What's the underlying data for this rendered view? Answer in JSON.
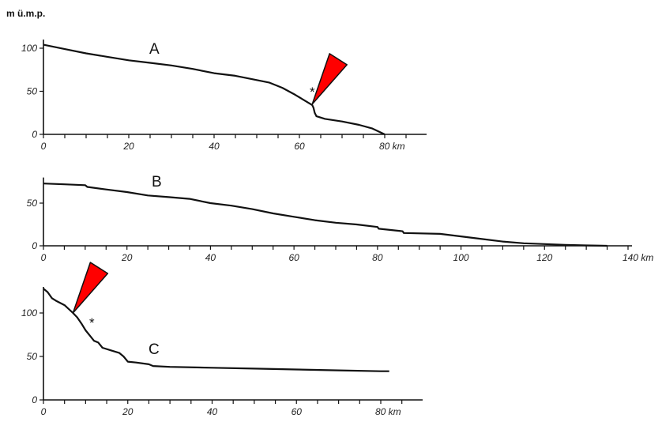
{
  "unit_label": "m ü.m.p.",
  "chart_data": [
    {
      "type": "line",
      "label": "A",
      "x_tick_labels": [
        "0",
        "20",
        "40",
        "60",
        "80 km"
      ],
      "y_tick_labels": [
        "0",
        "50",
        "100"
      ],
      "x_ticks": [
        0,
        20,
        40,
        60,
        80
      ],
      "y_ticks": [
        0,
        50,
        100
      ],
      "xlim": [
        0,
        90
      ],
      "ylim": [
        0,
        110
      ],
      "annotation": "*",
      "marker": {
        "x": 63,
        "y": 35,
        "color": "#ff0000"
      },
      "points": [
        [
          0,
          104
        ],
        [
          5,
          99
        ],
        [
          10,
          94
        ],
        [
          15,
          90
        ],
        [
          20,
          86
        ],
        [
          25,
          83
        ],
        [
          30,
          80
        ],
        [
          35,
          76
        ],
        [
          40,
          71
        ],
        [
          45,
          68
        ],
        [
          50,
          63
        ],
        [
          53,
          60
        ],
        [
          56,
          54
        ],
        [
          59,
          46
        ],
        [
          61,
          40
        ],
        [
          62,
          37
        ],
        [
          63,
          34
        ],
        [
          63.3,
          31
        ],
        [
          63.6,
          25
        ],
        [
          64,
          21
        ],
        [
          66,
          18
        ],
        [
          70,
          15
        ],
        [
          74,
          11
        ],
        [
          77,
          7
        ],
        [
          80,
          0
        ]
      ]
    },
    {
      "type": "line",
      "label": "B",
      "x_tick_labels": [
        "0",
        "20",
        "40",
        "60",
        "80",
        "100",
        "120",
        "140 km"
      ],
      "y_tick_labels": [
        "0",
        "50"
      ],
      "x_ticks": [
        0,
        20,
        40,
        60,
        80,
        100,
        120,
        140
      ],
      "y_ticks": [
        0,
        50
      ],
      "xlim": [
        0,
        140
      ],
      "ylim": [
        0,
        80
      ],
      "points": [
        [
          0,
          73
        ],
        [
          5,
          72
        ],
        [
          10,
          71
        ],
        [
          10.5,
          69
        ],
        [
          15,
          66
        ],
        [
          20,
          63
        ],
        [
          25,
          59
        ],
        [
          30,
          57
        ],
        [
          35,
          55
        ],
        [
          40,
          50
        ],
        [
          45,
          47
        ],
        [
          50,
          43
        ],
        [
          55,
          38
        ],
        [
          60,
          34
        ],
        [
          65,
          30
        ],
        [
          70,
          27
        ],
        [
          75,
          25
        ],
        [
          80,
          22
        ],
        [
          80.3,
          20
        ],
        [
          86,
          17
        ],
        [
          86.3,
          15
        ],
        [
          95,
          14
        ],
        [
          100,
          11
        ],
        [
          105,
          8
        ],
        [
          110,
          5
        ],
        [
          115,
          3
        ],
        [
          120,
          2
        ],
        [
          125,
          1
        ],
        [
          130,
          0.5
        ],
        [
          135,
          0
        ]
      ]
    },
    {
      "type": "line",
      "label": "C",
      "x_tick_labels": [
        "0",
        "20",
        "40",
        "60",
        "80 km"
      ],
      "y_tick_labels": [
        "0",
        "50",
        "100"
      ],
      "x_ticks": [
        0,
        20,
        40,
        60,
        80
      ],
      "y_ticks": [
        0,
        50,
        100
      ],
      "xlim": [
        0,
        90
      ],
      "ylim": [
        0,
        130
      ],
      "annotation": "*",
      "marker": {
        "x": 7,
        "y": 100,
        "color": "#ff0000"
      },
      "points": [
        [
          0,
          128
        ],
        [
          1,
          124
        ],
        [
          2,
          117
        ],
        [
          3,
          114
        ],
        [
          5,
          109
        ],
        [
          7,
          100
        ],
        [
          8,
          95
        ],
        [
          9,
          88
        ],
        [
          10,
          80
        ],
        [
          11,
          74
        ],
        [
          12,
          68
        ],
        [
          13,
          66
        ],
        [
          14,
          60
        ],
        [
          16,
          57
        ],
        [
          18,
          54
        ],
        [
          19,
          50
        ],
        [
          20,
          44
        ],
        [
          22,
          43
        ],
        [
          25,
          41
        ],
        [
          26,
          39
        ],
        [
          30,
          38
        ],
        [
          40,
          37
        ],
        [
          50,
          36
        ],
        [
          60,
          35
        ],
        [
          70,
          34
        ],
        [
          80,
          33
        ],
        [
          82,
          33
        ]
      ]
    }
  ]
}
